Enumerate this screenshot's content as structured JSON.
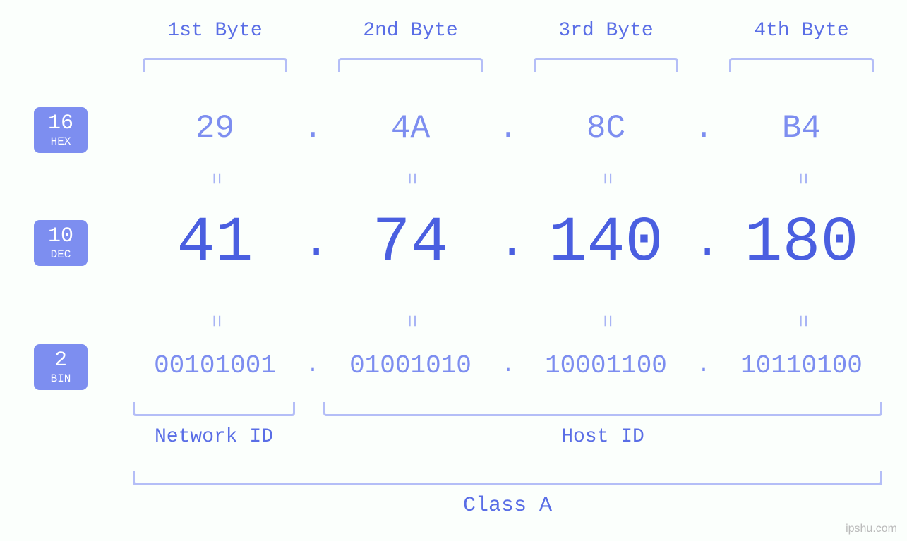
{
  "colors": {
    "badge_bg": "#7d8ef0",
    "badge_fg": "#ffffff",
    "header_text": "#5a6ee6",
    "bracket": "#b4bef7",
    "hex_text": "#7d8ef0",
    "dec_text": "#4a5fe0",
    "bin_text": "#7d8ef0",
    "equals_text": "#a8b4f5",
    "background": "#fbfffc",
    "watermark": "#bbbbbb"
  },
  "fontsizes": {
    "byte_label": 28,
    "hex": 46,
    "dec": 90,
    "bin": 36,
    "equals": 30,
    "nh_label": 28,
    "class_label": 30,
    "badge_num": 30,
    "badge_txt": 16
  },
  "badges": {
    "hex": {
      "base": "16",
      "name": "HEX"
    },
    "dec": {
      "base": "10",
      "name": "DEC"
    },
    "bin": {
      "base": "2",
      "name": "BIN"
    }
  },
  "byte_labels": [
    "1st Byte",
    "2nd Byte",
    "3rd Byte",
    "4th Byte"
  ],
  "hex": [
    "29",
    "4A",
    "8C",
    "B4"
  ],
  "dec": [
    "41",
    "74",
    "140",
    "180"
  ],
  "bin": [
    "00101001",
    "01001010",
    "10001100",
    "10110100"
  ],
  "dot": ".",
  "equals": "=",
  "network_label": "Network ID",
  "host_label": "Host ID",
  "class_label": "Class A",
  "watermark": "ipshu.com",
  "structure": {
    "type": "infographic",
    "subject": "IPv4 address octet breakdown",
    "network_octets": 1,
    "host_octets": 3,
    "class": "A"
  }
}
